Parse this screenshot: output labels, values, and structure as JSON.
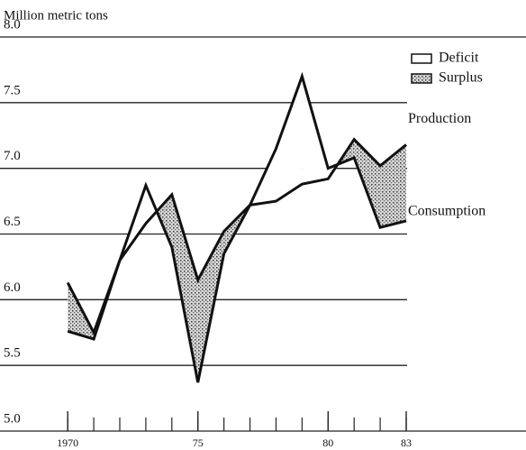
{
  "chart_data": {
    "type": "line",
    "title": "Million metric tons",
    "x": [
      1970,
      1971,
      1972,
      1973,
      1974,
      1975,
      1976,
      1977,
      1978,
      1979,
      1980,
      1981,
      1982,
      1983
    ],
    "series": [
      {
        "name": "Production",
        "color": "#111111",
        "values": [
          6.13,
          5.75,
          6.3,
          6.58,
          6.8,
          6.15,
          6.52,
          6.72,
          6.75,
          6.88,
          6.92,
          7.22,
          7.02,
          7.18
        ]
      },
      {
        "name": "Consumption",
        "color": "#111111",
        "values": [
          5.76,
          5.7,
          6.3,
          6.87,
          6.4,
          5.37,
          6.35,
          6.72,
          7.15,
          7.7,
          7.0,
          7.08,
          6.55,
          6.6
        ]
      }
    ],
    "bands": [
      {
        "name": "Deficit",
        "color": "#ffffff"
      },
      {
        "name": "Surplus",
        "color": "#8a8a8a"
      }
    ],
    "xlim": [
      1967.4,
      1987.6
    ],
    "xticks": [
      1970,
      {
        "value": 1975,
        "label": "75"
      },
      {
        "value": 1980,
        "label": "80"
      },
      {
        "value": 1983,
        "label": "83"
      }
    ],
    "ylim": [
      5.0,
      8.0
    ],
    "yticks": [
      {
        "value": 5.0,
        "label": "5.0"
      },
      5.5,
      {
        "value": 6.0,
        "label": "6.0"
      },
      6.5,
      {
        "value": 7.0,
        "label": "7.0"
      },
      7.5,
      {
        "value": 8.0,
        "label": "8.0"
      }
    ],
    "grid": true
  }
}
